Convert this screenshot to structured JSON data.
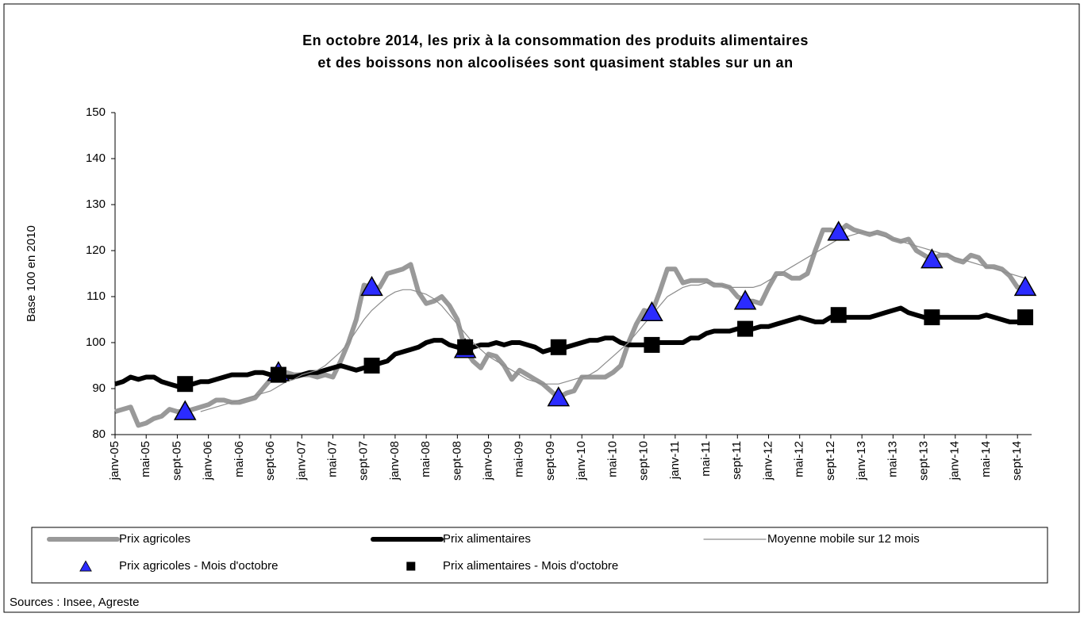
{
  "chart_data": {
    "type": "line",
    "title": [
      "En octobre 2014, les prix à la consommation des produits alimentaires",
      "et des boissons non alcoolisées sont quasiment stables sur un an"
    ],
    "y_label": "Base 100 en 2010",
    "source": "Sources : Insee, Agreste",
    "ylim": [
      80,
      150
    ],
    "yticks": [
      80,
      90,
      100,
      110,
      120,
      130,
      140,
      150
    ],
    "categories": [
      "janv-05",
      null,
      null,
      null,
      "mai-05",
      null,
      null,
      null,
      "sept-05",
      null,
      null,
      null,
      "janv-06",
      null,
      null,
      null,
      "mai-06",
      null,
      null,
      null,
      "sept-06",
      null,
      null,
      null,
      "janv-07",
      null,
      null,
      null,
      "mai-07",
      null,
      null,
      null,
      "sept-07",
      null,
      null,
      null,
      "janv-08",
      null,
      null,
      null,
      "mai-08",
      null,
      null,
      null,
      "sept-08",
      null,
      null,
      null,
      "janv-09",
      null,
      null,
      null,
      "mai-09",
      null,
      null,
      null,
      "sept-09",
      null,
      null,
      null,
      "janv-10",
      null,
      null,
      null,
      "mai-10",
      null,
      null,
      null,
      "sept-10",
      null,
      null,
      null,
      "janv-11",
      null,
      null,
      null,
      "mai-11",
      null,
      null,
      null,
      "sept-11",
      null,
      null,
      null,
      "janv-12",
      null,
      null,
      null,
      "mai-12",
      null,
      null,
      null,
      "sept-12",
      null,
      null,
      null,
      "janv-13",
      null,
      null,
      null,
      "mai-13",
      null,
      null,
      null,
      "sept-13",
      null,
      null,
      null,
      "janv-14",
      null,
      null,
      null,
      "mai-14",
      null,
      null,
      null,
      "sept-14",
      null
    ],
    "series": [
      {
        "name": "Prix agricoles",
        "color": "#999999",
        "line_width": 6,
        "values": [
          85,
          85.5,
          86,
          82,
          82.5,
          83.5,
          84,
          85.5,
          85,
          85,
          85.5,
          86,
          86.5,
          87.5,
          87.5,
          87,
          87,
          87.5,
          88,
          90,
          92,
          93.5,
          93.5,
          93,
          93,
          93,
          92.5,
          93,
          92.5,
          96,
          100,
          105,
          112.5,
          112,
          112,
          115,
          115.5,
          116,
          117,
          111,
          108.5,
          109,
          110,
          108,
          105,
          98.5,
          96,
          94.5,
          97.5,
          97,
          95,
          92,
          94,
          93,
          92,
          91,
          89.5,
          88,
          89,
          89.5,
          92.5,
          92.5,
          92.5,
          92.5,
          93.5,
          95,
          100,
          104,
          107,
          106.5,
          111,
          116,
          116,
          113,
          113.5,
          113.5,
          113.5,
          112.5,
          112.5,
          112,
          110,
          109,
          109,
          108.5,
          112,
          115,
          115,
          114,
          114,
          115,
          120,
          124.5,
          124.5,
          124,
          125.5,
          124.5,
          124,
          123.5,
          124,
          123.5,
          122.5,
          122,
          122.5,
          120,
          119,
          118,
          119,
          119,
          118,
          117.5,
          119,
          118.5,
          116.5,
          116.5,
          116,
          114.5,
          112,
          112
        ]
      },
      {
        "name": "Prix alimentaires",
        "color": "#000000",
        "line_width": 6,
        "values": [
          91,
          91.5,
          92.5,
          92,
          92.5,
          92.5,
          91.5,
          91,
          90.5,
          91,
          91,
          91.5,
          91.5,
          92,
          92.5,
          93,
          93,
          93,
          93.5,
          93.5,
          93,
          93,
          92.5,
          92.5,
          93,
          93.5,
          93.5,
          94,
          94.5,
          95,
          94.5,
          94,
          94.5,
          95,
          95.5,
          96,
          97.5,
          98,
          98.5,
          99,
          100,
          100.5,
          100.5,
          99.5,
          99,
          99,
          99,
          99.5,
          99.5,
          100,
          99.5,
          100,
          100,
          99.5,
          99,
          98,
          98.5,
          99,
          99,
          99.5,
          100,
          100.5,
          100.5,
          101,
          101,
          100,
          99.5,
          99.5,
          99.5,
          99.5,
          100,
          100,
          100,
          100,
          101,
          101,
          102,
          102.5,
          102.5,
          102.5,
          103,
          103,
          103,
          103.5,
          103.5,
          104,
          104.5,
          105,
          105.5,
          105,
          104.5,
          104.5,
          105.5,
          106,
          105.5,
          105.5,
          105.5,
          105.5,
          106,
          106.5,
          107,
          107.5,
          106.5,
          106,
          105.5,
          105.5,
          105.5,
          105.5,
          105.5,
          105.5,
          105.5,
          105.5,
          106,
          105.5,
          105,
          104.5,
          104.5,
          105.5
        ]
      },
      {
        "name": "Moyenne mobile sur 12 mois",
        "color": "#8c8c8c",
        "line_width": 1.2,
        "values": [
          null,
          null,
          null,
          null,
          null,
          null,
          null,
          null,
          null,
          null,
          null,
          85,
          85.5,
          86,
          86.5,
          87,
          87.5,
          88,
          88.5,
          89,
          89.5,
          90.5,
          91.5,
          92,
          93,
          93.5,
          94,
          95,
          96.5,
          98,
          100,
          102.5,
          105,
          107,
          108.5,
          110,
          111,
          111.5,
          111.5,
          111,
          110.5,
          109.5,
          108,
          106,
          104,
          102,
          100,
          98.5,
          97,
          96,
          95,
          94,
          93,
          92,
          91.5,
          91,
          91,
          91,
          91.5,
          92,
          92.5,
          93,
          94,
          95.5,
          97,
          98.5,
          100,
          102,
          104,
          106,
          108,
          110,
          111,
          112,
          112.5,
          112.5,
          113,
          113,
          112.5,
          112,
          112,
          112,
          112,
          112.5,
          113.5,
          114.5,
          115.5,
          116.5,
          117.5,
          118.5,
          119.5,
          120.5,
          121.5,
          122.5,
          123,
          123.5,
          124,
          124,
          123.5,
          123,
          122.5,
          122,
          121.5,
          121,
          120.5,
          120,
          119.5,
          119,
          118.5,
          118,
          117.5,
          117,
          116.5,
          116,
          115.5,
          115,
          114.5,
          114
        ]
      },
      {
        "name": "Prix agricoles - Mois d'octobre",
        "color": "#2b2bff",
        "marker": "triangle",
        "values": [
          null,
          null,
          null,
          null,
          null,
          null,
          null,
          null,
          null,
          85,
          null,
          null,
          null,
          null,
          null,
          null,
          null,
          null,
          null,
          null,
          null,
          93.5,
          null,
          null,
          null,
          null,
          null,
          null,
          null,
          null,
          null,
          null,
          null,
          112,
          null,
          null,
          null,
          null,
          null,
          null,
          null,
          null,
          null,
          null,
          null,
          98.5,
          null,
          null,
          null,
          null,
          null,
          null,
          null,
          null,
          null,
          null,
          null,
          88,
          null,
          null,
          null,
          null,
          null,
          null,
          null,
          null,
          null,
          null,
          null,
          106.5,
          null,
          null,
          null,
          null,
          null,
          null,
          null,
          null,
          null,
          null,
          null,
          109,
          null,
          null,
          null,
          null,
          null,
          null,
          null,
          null,
          null,
          null,
          null,
          124,
          null,
          null,
          null,
          null,
          null,
          null,
          null,
          null,
          null,
          null,
          null,
          118,
          null,
          null,
          null,
          null,
          null,
          null,
          null,
          null,
          null,
          null,
          null,
          112
        ]
      },
      {
        "name": "Prix alimentaires - Mois d'octobre",
        "color": "#000000",
        "marker": "square",
        "values": [
          null,
          null,
          null,
          null,
          null,
          null,
          null,
          null,
          null,
          91,
          null,
          null,
          null,
          null,
          null,
          null,
          null,
          null,
          null,
          null,
          null,
          93,
          null,
          null,
          null,
          null,
          null,
          null,
          null,
          null,
          null,
          null,
          null,
          95,
          null,
          null,
          null,
          null,
          null,
          null,
          null,
          null,
          null,
          null,
          null,
          99,
          null,
          null,
          null,
          null,
          null,
          null,
          null,
          null,
          null,
          null,
          null,
          99,
          null,
          null,
          null,
          null,
          null,
          null,
          null,
          null,
          null,
          null,
          null,
          99.5,
          null,
          null,
          null,
          null,
          null,
          null,
          null,
          null,
          null,
          null,
          null,
          103,
          null,
          null,
          null,
          null,
          null,
          null,
          null,
          null,
          null,
          null,
          null,
          106,
          null,
          null,
          null,
          null,
          null,
          null,
          null,
          null,
          null,
          null,
          null,
          105.5,
          null,
          null,
          null,
          null,
          null,
          null,
          null,
          null,
          null,
          null,
          null,
          105.5
        ]
      }
    ]
  }
}
